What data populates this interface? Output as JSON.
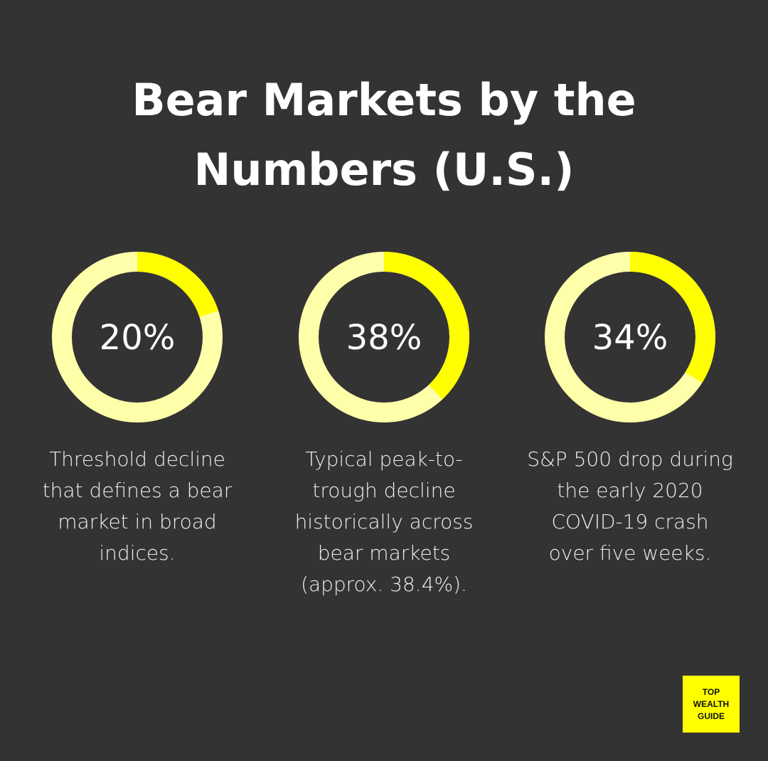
{
  "chart_data": {
    "type": "donut",
    "title": "Bear Markets by the Numbers (U.S.)",
    "categories": [
      "Threshold decline that defines a bear market in broad indices.",
      "Typical peak-to-trough decline historically across bear markets (approx. 38.4%).",
      "S&P 500 drop during the early 2020 COVID-19 crash over five weeks."
    ],
    "values": [
      20,
      38,
      34
    ],
    "value_labels": [
      "20%",
      "38%",
      "34%"
    ],
    "color": "#ffff00",
    "track_color": "#ffffaa"
  },
  "logo": [
    "TOP",
    "WEALTH",
    "GUIDE"
  ]
}
